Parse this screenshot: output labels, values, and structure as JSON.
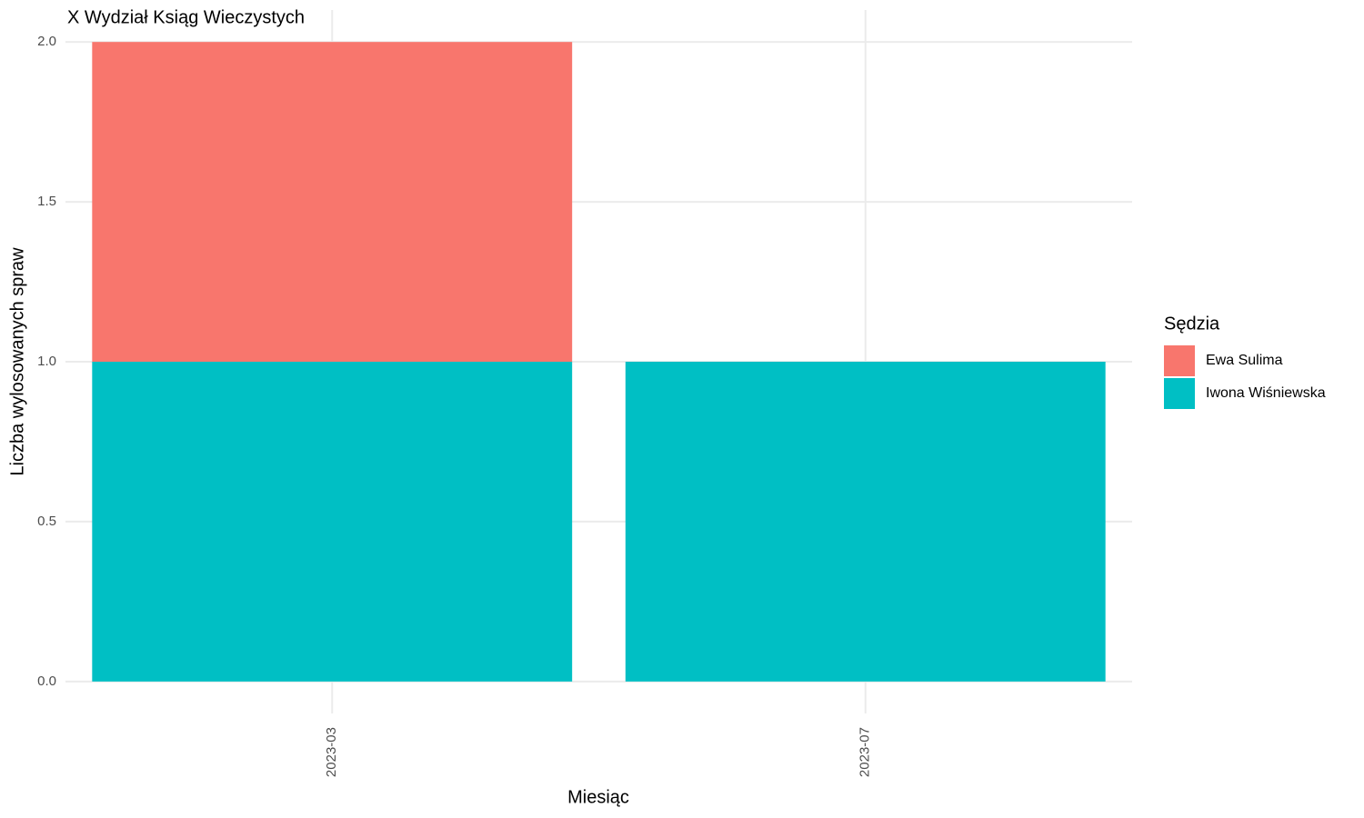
{
  "chart_data": {
    "type": "bar",
    "stacked": true,
    "title": "X Wydział Ksiąg Wieczystych",
    "x_label": "Miesiąc",
    "y_label": "Liczba wylosowanych spraw",
    "categories": [
      "2023-03",
      "2023-07"
    ],
    "series": [
      {
        "name": "Ewa Sulima",
        "color": "#f8766d",
        "values": [
          1,
          0
        ]
      },
      {
        "name": "Iwona Wiśniewska",
        "color": "#00bfc4",
        "values": [
          1,
          1
        ]
      }
    ],
    "ylim": [
      -0.1,
      2.1
    ],
    "yticks": [
      {
        "value": 0,
        "label": "0.0"
      },
      {
        "value": 0.5,
        "label": "0.5"
      },
      {
        "value": 1,
        "label": "1.0"
      },
      {
        "value": 1.5,
        "label": "1.5"
      },
      {
        "value": 2,
        "label": "2.0"
      }
    ],
    "grid": true,
    "legend_title": "Sędzia",
    "legend_position": "right"
  }
}
